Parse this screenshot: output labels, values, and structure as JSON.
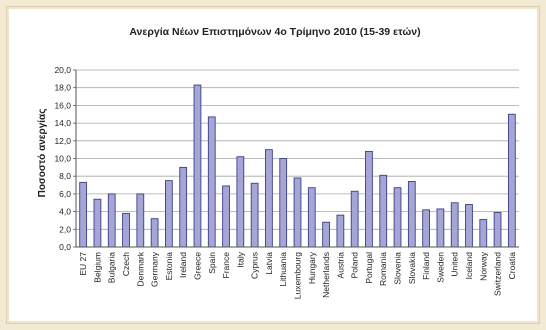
{
  "chart_data": {
    "type": "bar",
    "title": "Ανεργία Νέων Επιστημόνων 4ο Τρίμηνο 2010 (15-39 ετών)",
    "xlabel": "",
    "ylabel": "Ποσοστό ανεργίας",
    "ylim": [
      0,
      20
    ],
    "yticks": [
      "0,0",
      "2,0",
      "4,0",
      "6,0",
      "8,0",
      "10,0",
      "12,0",
      "14,0",
      "16,0",
      "18,0",
      "20,0"
    ],
    "grid": true,
    "categories": [
      "EU 27",
      "Belgium",
      "Bulgaria",
      "Czech",
      "Denmark",
      "Germany",
      "Estonia",
      "Ireland",
      "Greece",
      "Spain",
      "France",
      "Italy",
      "Cyprus",
      "Latvia",
      "Lithuania",
      "Luxembourg",
      "Hungary",
      "Netherlands",
      "Austria",
      "Poland",
      "Portugal",
      "Romania",
      "Slovenia",
      "Slovakia",
      "Finland",
      "Sweden",
      "United",
      "Iceland",
      "Norway",
      "Switzerland",
      "Croatia"
    ],
    "values": [
      7.3,
      5.4,
      6.0,
      3.8,
      6.0,
      3.2,
      7.5,
      9.0,
      18.3,
      14.7,
      6.9,
      10.2,
      7.2,
      11.0,
      10.0,
      7.8,
      6.7,
      2.8,
      3.6,
      6.3,
      10.8,
      8.1,
      6.7,
      7.4,
      4.2,
      4.3,
      5.0,
      4.8,
      3.1,
      3.9,
      15.0
    ],
    "colors": {
      "bar_fill": "#a5a6d6",
      "bar_stroke": "#3b3f86",
      "grid": "#a8a8a8",
      "axis": "#555555"
    }
  }
}
